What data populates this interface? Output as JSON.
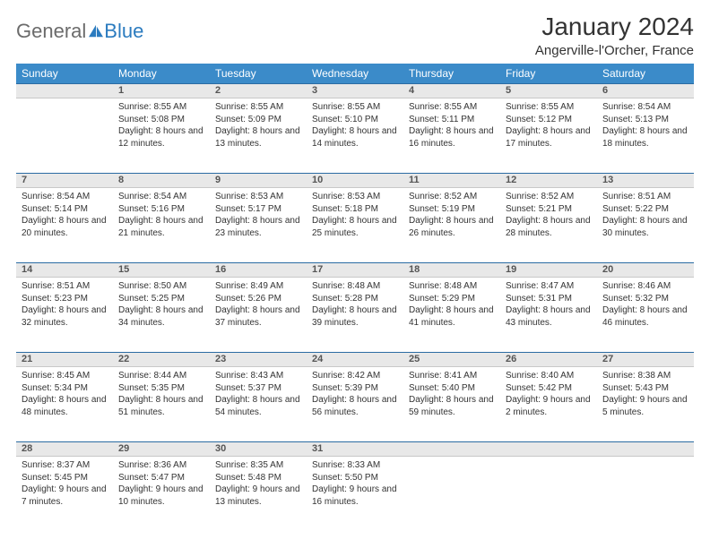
{
  "logo": {
    "part1": "General",
    "part2": "Blue"
  },
  "title": "January 2024",
  "location": "Angerville-l'Orcher, France",
  "header_bg": "#3b8bc9",
  "daynum_bg": "#e8e8e8",
  "border_color": "#2b6ca3",
  "day_headers": [
    "Sunday",
    "Monday",
    "Tuesday",
    "Wednesday",
    "Thursday",
    "Friday",
    "Saturday"
  ],
  "weeks": [
    [
      null,
      {
        "n": "1",
        "sr": "Sunrise: 8:55 AM",
        "ss": "Sunset: 5:08 PM",
        "dl": "Daylight: 8 hours and 12 minutes."
      },
      {
        "n": "2",
        "sr": "Sunrise: 8:55 AM",
        "ss": "Sunset: 5:09 PM",
        "dl": "Daylight: 8 hours and 13 minutes."
      },
      {
        "n": "3",
        "sr": "Sunrise: 8:55 AM",
        "ss": "Sunset: 5:10 PM",
        "dl": "Daylight: 8 hours and 14 minutes."
      },
      {
        "n": "4",
        "sr": "Sunrise: 8:55 AM",
        "ss": "Sunset: 5:11 PM",
        "dl": "Daylight: 8 hours and 16 minutes."
      },
      {
        "n": "5",
        "sr": "Sunrise: 8:55 AM",
        "ss": "Sunset: 5:12 PM",
        "dl": "Daylight: 8 hours and 17 minutes."
      },
      {
        "n": "6",
        "sr": "Sunrise: 8:54 AM",
        "ss": "Sunset: 5:13 PM",
        "dl": "Daylight: 8 hours and 18 minutes."
      }
    ],
    [
      {
        "n": "7",
        "sr": "Sunrise: 8:54 AM",
        "ss": "Sunset: 5:14 PM",
        "dl": "Daylight: 8 hours and 20 minutes."
      },
      {
        "n": "8",
        "sr": "Sunrise: 8:54 AM",
        "ss": "Sunset: 5:16 PM",
        "dl": "Daylight: 8 hours and 21 minutes."
      },
      {
        "n": "9",
        "sr": "Sunrise: 8:53 AM",
        "ss": "Sunset: 5:17 PM",
        "dl": "Daylight: 8 hours and 23 minutes."
      },
      {
        "n": "10",
        "sr": "Sunrise: 8:53 AM",
        "ss": "Sunset: 5:18 PM",
        "dl": "Daylight: 8 hours and 25 minutes."
      },
      {
        "n": "11",
        "sr": "Sunrise: 8:52 AM",
        "ss": "Sunset: 5:19 PM",
        "dl": "Daylight: 8 hours and 26 minutes."
      },
      {
        "n": "12",
        "sr": "Sunrise: 8:52 AM",
        "ss": "Sunset: 5:21 PM",
        "dl": "Daylight: 8 hours and 28 minutes."
      },
      {
        "n": "13",
        "sr": "Sunrise: 8:51 AM",
        "ss": "Sunset: 5:22 PM",
        "dl": "Daylight: 8 hours and 30 minutes."
      }
    ],
    [
      {
        "n": "14",
        "sr": "Sunrise: 8:51 AM",
        "ss": "Sunset: 5:23 PM",
        "dl": "Daylight: 8 hours and 32 minutes."
      },
      {
        "n": "15",
        "sr": "Sunrise: 8:50 AM",
        "ss": "Sunset: 5:25 PM",
        "dl": "Daylight: 8 hours and 34 minutes."
      },
      {
        "n": "16",
        "sr": "Sunrise: 8:49 AM",
        "ss": "Sunset: 5:26 PM",
        "dl": "Daylight: 8 hours and 37 minutes."
      },
      {
        "n": "17",
        "sr": "Sunrise: 8:48 AM",
        "ss": "Sunset: 5:28 PM",
        "dl": "Daylight: 8 hours and 39 minutes."
      },
      {
        "n": "18",
        "sr": "Sunrise: 8:48 AM",
        "ss": "Sunset: 5:29 PM",
        "dl": "Daylight: 8 hours and 41 minutes."
      },
      {
        "n": "19",
        "sr": "Sunrise: 8:47 AM",
        "ss": "Sunset: 5:31 PM",
        "dl": "Daylight: 8 hours and 43 minutes."
      },
      {
        "n": "20",
        "sr": "Sunrise: 8:46 AM",
        "ss": "Sunset: 5:32 PM",
        "dl": "Daylight: 8 hours and 46 minutes."
      }
    ],
    [
      {
        "n": "21",
        "sr": "Sunrise: 8:45 AM",
        "ss": "Sunset: 5:34 PM",
        "dl": "Daylight: 8 hours and 48 minutes."
      },
      {
        "n": "22",
        "sr": "Sunrise: 8:44 AM",
        "ss": "Sunset: 5:35 PM",
        "dl": "Daylight: 8 hours and 51 minutes."
      },
      {
        "n": "23",
        "sr": "Sunrise: 8:43 AM",
        "ss": "Sunset: 5:37 PM",
        "dl": "Daylight: 8 hours and 54 minutes."
      },
      {
        "n": "24",
        "sr": "Sunrise: 8:42 AM",
        "ss": "Sunset: 5:39 PM",
        "dl": "Daylight: 8 hours and 56 minutes."
      },
      {
        "n": "25",
        "sr": "Sunrise: 8:41 AM",
        "ss": "Sunset: 5:40 PM",
        "dl": "Daylight: 8 hours and 59 minutes."
      },
      {
        "n": "26",
        "sr": "Sunrise: 8:40 AM",
        "ss": "Sunset: 5:42 PM",
        "dl": "Daylight: 9 hours and 2 minutes."
      },
      {
        "n": "27",
        "sr": "Sunrise: 8:38 AM",
        "ss": "Sunset: 5:43 PM",
        "dl": "Daylight: 9 hours and 5 minutes."
      }
    ],
    [
      {
        "n": "28",
        "sr": "Sunrise: 8:37 AM",
        "ss": "Sunset: 5:45 PM",
        "dl": "Daylight: 9 hours and 7 minutes."
      },
      {
        "n": "29",
        "sr": "Sunrise: 8:36 AM",
        "ss": "Sunset: 5:47 PM",
        "dl": "Daylight: 9 hours and 10 minutes."
      },
      {
        "n": "30",
        "sr": "Sunrise: 8:35 AM",
        "ss": "Sunset: 5:48 PM",
        "dl": "Daylight: 9 hours and 13 minutes."
      },
      {
        "n": "31",
        "sr": "Sunrise: 8:33 AM",
        "ss": "Sunset: 5:50 PM",
        "dl": "Daylight: 9 hours and 16 minutes."
      },
      null,
      null,
      null
    ]
  ]
}
